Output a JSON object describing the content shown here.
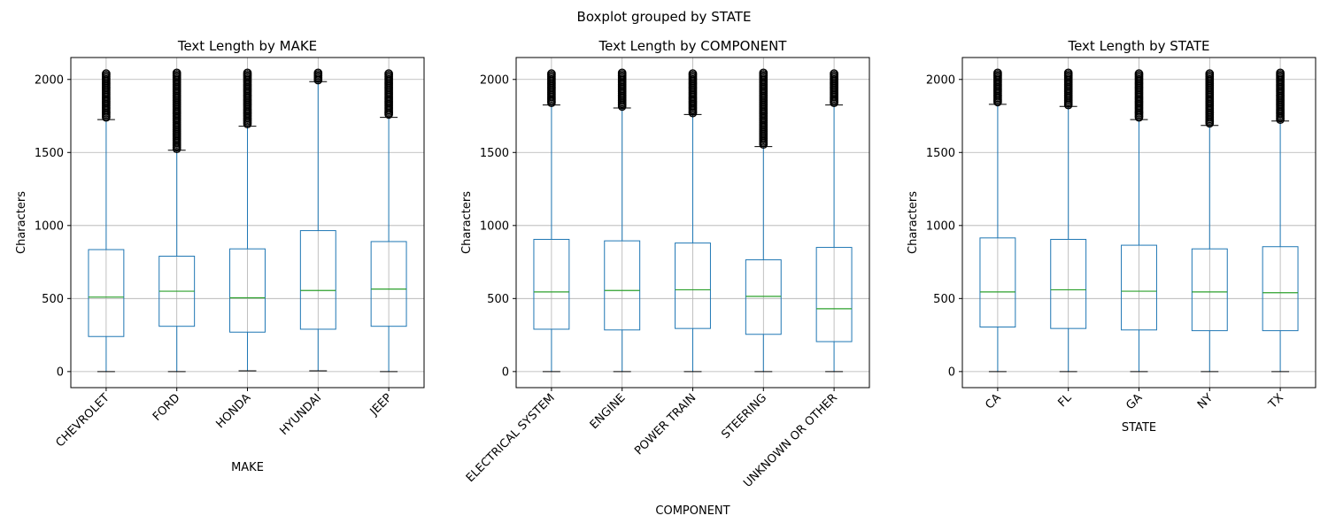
{
  "figure": {
    "suptitle": "Boxplot grouped by STATE"
  },
  "style": {
    "box_color": "#1f77b4",
    "median_color": "#2ca02c",
    "grid_color": "#b0b0b0",
    "flier_color": "#000000"
  },
  "chart_data": [
    {
      "type": "box",
      "title": "Text Length by MAKE",
      "xlabel": "MAKE",
      "ylabel": "Characters",
      "ylim": [
        -110,
        2150
      ],
      "yticks": [
        0,
        500,
        1000,
        1500,
        2000
      ],
      "grid": true,
      "categories": [
        "CHEVROLET",
        "FORD",
        "HONDA",
        "HYUNDAI",
        "JEEP"
      ],
      "boxes": [
        {
          "min": 0,
          "q1": 240,
          "median": 510,
          "q3": 835,
          "whisker_high": 1725,
          "outliers_from": 1740,
          "outliers_to": 2045
        },
        {
          "min": 0,
          "q1": 310,
          "median": 550,
          "q3": 790,
          "whisker_high": 1515,
          "outliers_from": 1525,
          "outliers_to": 2045
        },
        {
          "min": 5,
          "q1": 270,
          "median": 505,
          "q3": 840,
          "whisker_high": 1680,
          "outliers_from": 1695,
          "outliers_to": 2045
        },
        {
          "min": 5,
          "q1": 290,
          "median": 555,
          "q3": 965,
          "whisker_high": 1985,
          "outliers_from": 1995,
          "outliers_to": 2045
        },
        {
          "min": 0,
          "q1": 310,
          "median": 565,
          "q3": 890,
          "whisker_high": 1740,
          "outliers_from": 1760,
          "outliers_to": 2045
        }
      ]
    },
    {
      "type": "box",
      "title": "Text Length by COMPONENT",
      "xlabel": "COMPONENT",
      "ylabel": "Characters",
      "ylim": [
        -110,
        2150
      ],
      "yticks": [
        0,
        500,
        1000,
        1500,
        2000
      ],
      "grid": true,
      "categories": [
        "ELECTRICAL SYSTEM",
        "ENGINE",
        "POWER TRAIN",
        "STEERING",
        "UNKNOWN OR OTHER"
      ],
      "boxes": [
        {
          "min": 0,
          "q1": 290,
          "median": 545,
          "q3": 905,
          "whisker_high": 1825,
          "outliers_from": 1840,
          "outliers_to": 2045
        },
        {
          "min": 0,
          "q1": 285,
          "median": 555,
          "q3": 895,
          "whisker_high": 1805,
          "outliers_from": 1815,
          "outliers_to": 2045
        },
        {
          "min": 0,
          "q1": 295,
          "median": 560,
          "q3": 880,
          "whisker_high": 1760,
          "outliers_from": 1770,
          "outliers_to": 2045
        },
        {
          "min": 0,
          "q1": 255,
          "median": 515,
          "q3": 765,
          "whisker_high": 1540,
          "outliers_from": 1555,
          "outliers_to": 2045
        },
        {
          "min": 0,
          "q1": 205,
          "median": 430,
          "q3": 850,
          "whisker_high": 1825,
          "outliers_from": 1840,
          "outliers_to": 2045
        }
      ]
    },
    {
      "type": "box",
      "title": "Text Length by STATE",
      "xlabel": "STATE",
      "ylabel": "Characters",
      "ylim": [
        -110,
        2150
      ],
      "yticks": [
        0,
        500,
        1000,
        1500,
        2000
      ],
      "grid": true,
      "categories": [
        "CA",
        "FL",
        "GA",
        "NY",
        "TX"
      ],
      "boxes": [
        {
          "min": 0,
          "q1": 305,
          "median": 545,
          "q3": 915,
          "whisker_high": 1830,
          "outliers_from": 1845,
          "outliers_to": 2045
        },
        {
          "min": 0,
          "q1": 295,
          "median": 560,
          "q3": 905,
          "whisker_high": 1815,
          "outliers_from": 1825,
          "outliers_to": 2045
        },
        {
          "min": 0,
          "q1": 285,
          "median": 550,
          "q3": 865,
          "whisker_high": 1725,
          "outliers_from": 1740,
          "outliers_to": 2045
        },
        {
          "min": 0,
          "q1": 280,
          "median": 545,
          "q3": 840,
          "whisker_high": 1685,
          "outliers_from": 1700,
          "outliers_to": 2045
        },
        {
          "min": 0,
          "q1": 280,
          "median": 540,
          "q3": 855,
          "whisker_high": 1715,
          "outliers_from": 1725,
          "outliers_to": 2045
        }
      ]
    }
  ]
}
